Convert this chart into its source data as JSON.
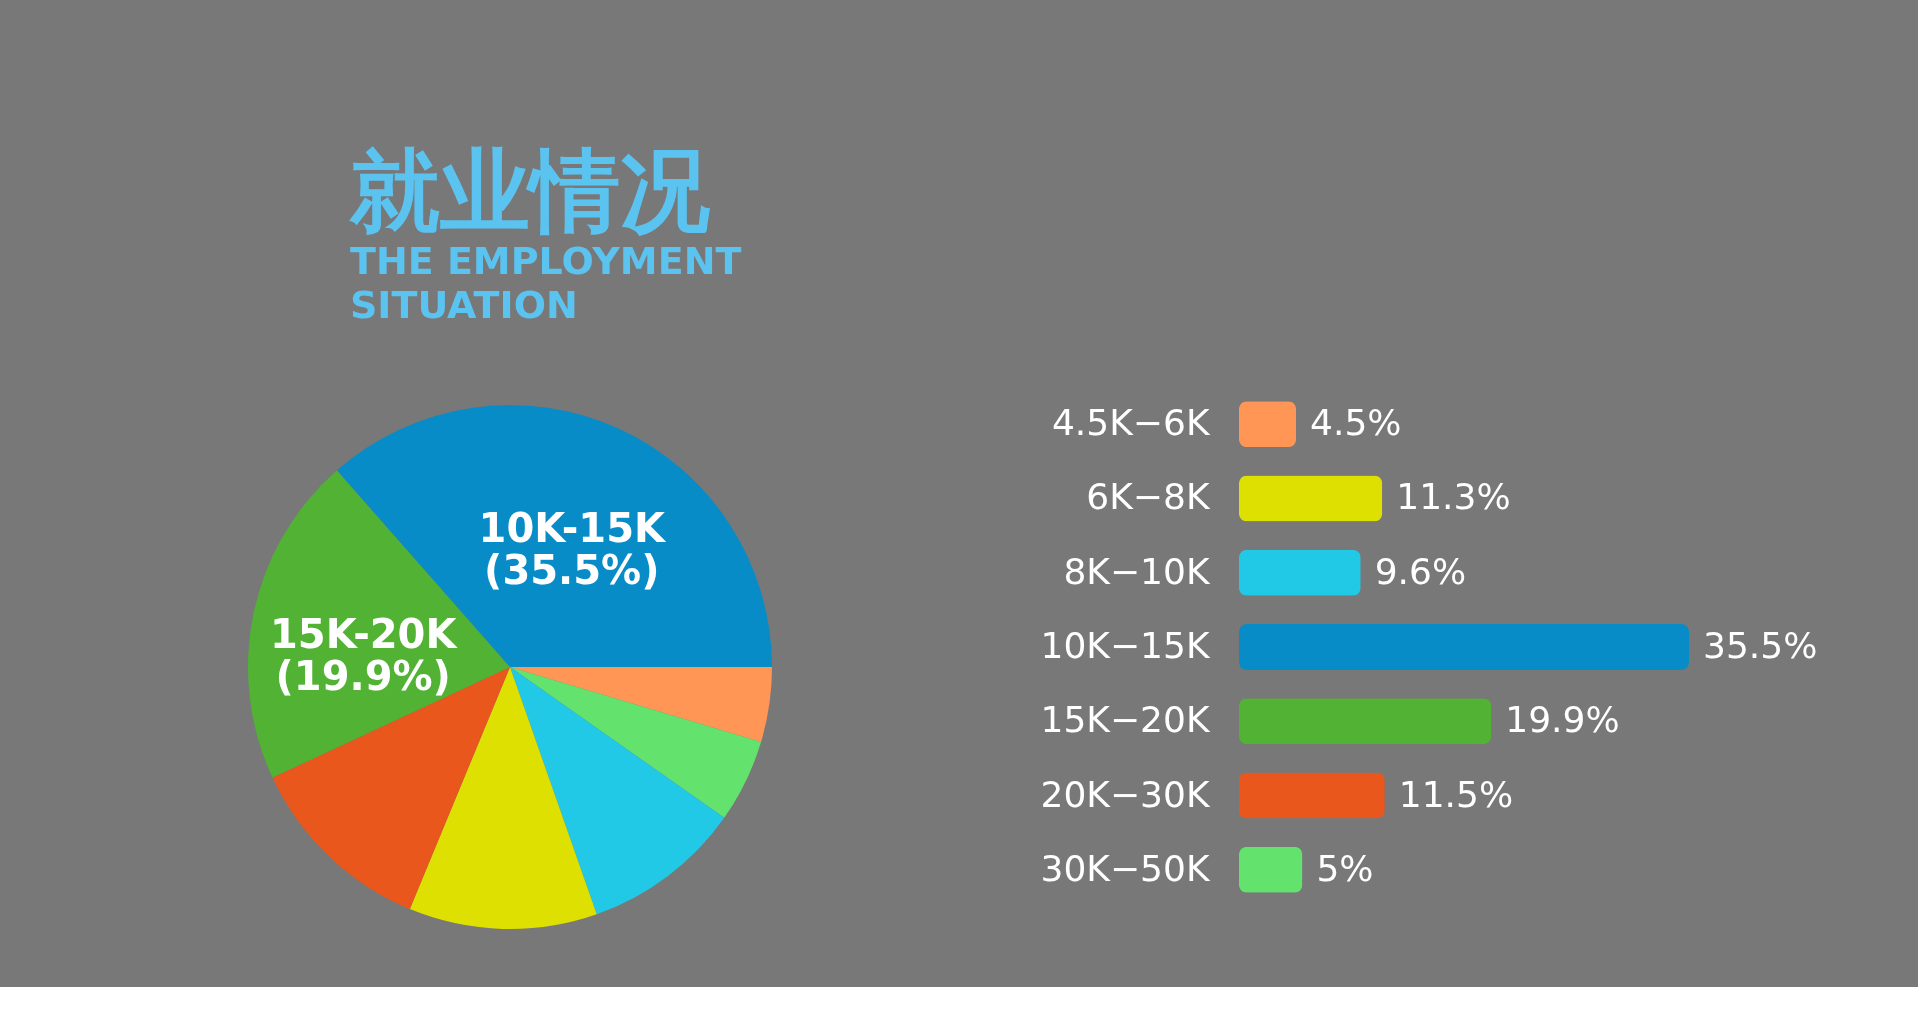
{
  "chart_data": [
    {
      "type": "pie",
      "title": "就业情况",
      "subtitle": "THE EMPLOYMENT\nSITUATION",
      "categories": [
        null,
        null,
        null,
        null,
        null,
        null,
        null
      ],
      "values": [
        4.5,
        5,
        9.6,
        11.3,
        11.5,
        19.9,
        35.5
      ],
      "colors": [
        "#ff9655",
        "#64e26e",
        "#22c9e6",
        "#dde000",
        "#ea571d",
        "#52b234",
        "#078cc8"
      ],
      "value_labels": [
        null,
        null,
        null,
        null,
        null,
        "15K-20K\n(19.9%)",
        "10K-15K\n(35.5%)"
      ]
    },
    {
      "type": "bar",
      "orientation": "horizontal",
      "value_labels": [
        "4.5%",
        "11.3%",
        "9.6%",
        "35.5%",
        "19.9%",
        "11.5%",
        "5%"
      ],
      "categories": [
        "4.5K−6K",
        "6K−8K",
        "8K−10K",
        "10K−15K",
        "15K−20K",
        "20K−30K",
        "30K−50K"
      ],
      "values": [
        4.5,
        11.3,
        9.6,
        35.5,
        19.9,
        11.5,
        5
      ],
      "colors": [
        "#ff9655",
        "#dde000",
        "#22c9e6",
        "#078cc8",
        "#52b234",
        "#ea571d",
        "#64e26e"
      ]
    }
  ]
}
